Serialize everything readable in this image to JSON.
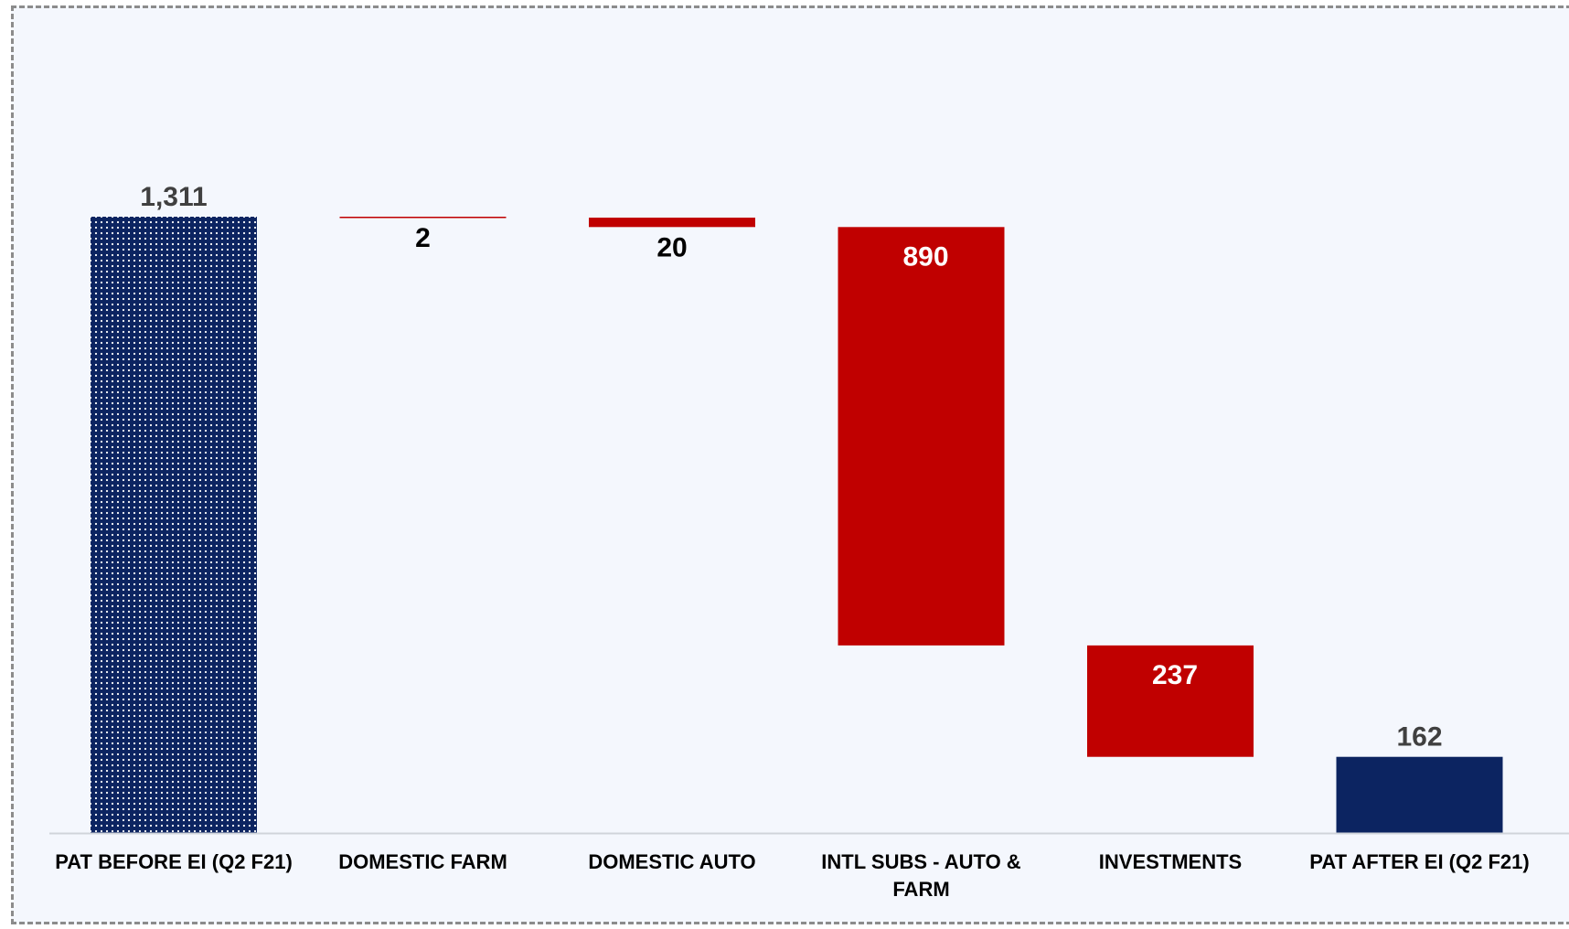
{
  "chart_data": {
    "type": "bar",
    "subtype": "waterfall",
    "categories": [
      "PAT BEFORE  EI (Q2 F21)",
      "DOMESTIC FARM",
      "DOMESTIC AUTO",
      "INTL SUBS - AUTO & FARM",
      "INVESTMENTS",
      "PAT AFTER EI (Q2 F21)"
    ],
    "category_lines": [
      [
        "PAT BEFORE  EI (Q2 F21)"
      ],
      [
        "DOMESTIC FARM"
      ],
      [
        "DOMESTIC AUTO"
      ],
      [
        "INTL SUBS - AUTO &",
        "FARM"
      ],
      [
        "INVESTMENTS"
      ],
      [
        "PAT AFTER EI (Q2 F21)"
      ]
    ],
    "values": [
      1311,
      -2,
      -20,
      -890,
      -237,
      162
    ],
    "bar_kinds": [
      "total",
      "decrease",
      "decrease",
      "decrease",
      "decrease",
      "total"
    ],
    "data_labels": [
      "1,311",
      "2",
      "20",
      "890",
      "237",
      "162"
    ],
    "ylim": [
      0,
      1311
    ],
    "grid": false,
    "legend": "none",
    "title": "",
    "xlabel": "",
    "ylabel": ""
  },
  "colors": {
    "total": "#0c2461",
    "decrease": "#c00000",
    "total_label": "#404040",
    "small_label": "#000000",
    "inside_label": "#ffffff",
    "axis": "#d0d4da",
    "dots": "#ffffff"
  }
}
